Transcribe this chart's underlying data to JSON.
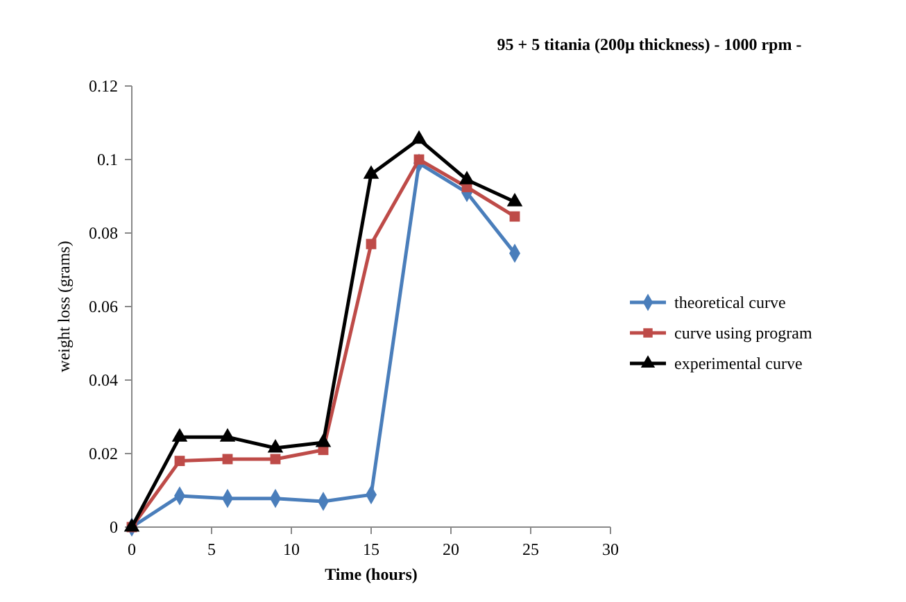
{
  "chart_data": {
    "type": "line",
    "title": "95 + 5 titania (200µ thickness) - 1000 rpm -",
    "xlabel": "Time (hours)",
    "ylabel": "weight loss (grams)",
    "x": [
      0,
      3,
      6,
      9,
      12,
      15,
      18,
      21,
      24
    ],
    "series": [
      {
        "name": "theoretical curve",
        "color": "#4a7ebb",
        "marker": "diamond",
        "values": [
          0,
          0.0085,
          0.0078,
          0.0078,
          0.007,
          0.0088,
          0.099,
          0.091,
          0.0745
        ]
      },
      {
        "name": "curve using program",
        "color": "#be4b48",
        "marker": "square",
        "values": [
          0,
          0.018,
          0.0185,
          0.0185,
          0.021,
          0.077,
          0.1,
          0.0925,
          0.0845
        ]
      },
      {
        "name": "experimental curve",
        "color": "#000000",
        "marker": "triangle",
        "values": [
          0,
          0.0245,
          0.0245,
          0.0215,
          0.023,
          0.096,
          0.1055,
          0.0945,
          0.0885
        ]
      }
    ],
    "xlim": [
      0,
      30
    ],
    "xticks": [
      0,
      5,
      10,
      15,
      20,
      25,
      30
    ],
    "ylim": [
      0,
      0.12
    ],
    "yticks": [
      0,
      0.02,
      0.04,
      0.06,
      0.08,
      0.1,
      0.12
    ],
    "grid": false,
    "legend": "right",
    "line_style": "solid"
  }
}
